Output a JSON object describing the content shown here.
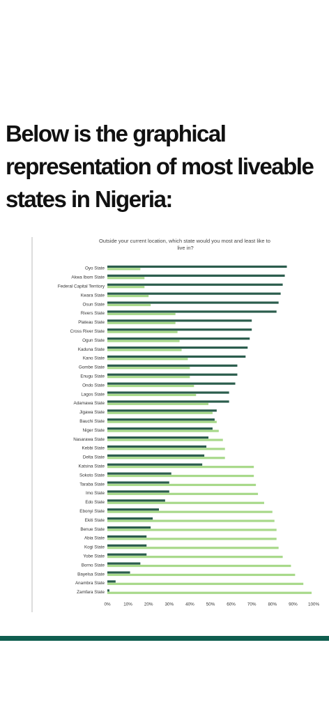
{
  "headline": {
    "line1": "Below is the graphical",
    "line2": "representation of most liveable",
    "line3": "states in Nigeria:"
  },
  "colors": {
    "most": "#2b5d4d",
    "least": "#a8d98a",
    "band": "#0f5e4f"
  },
  "chart_data": {
    "type": "bar",
    "orientation": "horizontal",
    "title": "Outside your current location, which state would you most and least like to live in?",
    "categories": [
      "Oyo State",
      "Akwa Ibom State",
      "Federal Capital Territory",
      "Kwara State",
      "Osun State",
      "Rivers State",
      "Plateau State",
      "Cross River State",
      "Ogun State",
      "Kaduna State",
      "Kano State",
      "Gombe State",
      "Enugu State",
      "Ondo State",
      "Lagos State",
      "Adamawa State",
      "Jigawa State",
      "Bauchi State",
      "Niger State",
      "Nasarawa State",
      "Kebbi State",
      "Delta State",
      "Katsina State",
      "Sokoto State",
      "Taraba State",
      "Imo State",
      "Edo State",
      "Ebonyi State",
      "Ekiti State",
      "Benue State",
      "Abia State",
      "Kogi State",
      "Yobe State",
      "Borno State",
      "Bayelsa State",
      "Anambra State",
      "Zamfara State"
    ],
    "series": [
      {
        "name": "",
        "values": [
          87,
          86,
          85,
          84,
          83,
          82,
          70,
          70,
          69,
          68,
          67,
          63,
          63,
          62,
          59,
          59,
          53,
          52,
          51,
          49,
          48,
          47,
          46,
          31,
          30,
          30,
          28,
          25,
          22,
          21,
          19,
          19,
          19,
          16,
          11,
          4,
          1
        ]
      },
      {
        "name": "",
        "values": [
          16,
          18,
          18,
          20,
          21,
          33,
          33,
          34,
          35,
          36,
          39,
          40,
          40,
          42,
          43,
          49,
          51,
          53,
          54,
          56,
          57,
          57,
          71,
          71,
          72,
          73,
          76,
          80,
          81,
          82,
          82,
          83,
          85,
          89,
          91,
          95,
          99
        ]
      }
    ],
    "x_ticks": [
      "0%",
      "10%",
      "20%",
      "30%",
      "40%",
      "50%",
      "60%",
      "70%",
      "80%",
      "90%",
      "100%"
    ],
    "xlim": [
      0,
      100
    ]
  }
}
